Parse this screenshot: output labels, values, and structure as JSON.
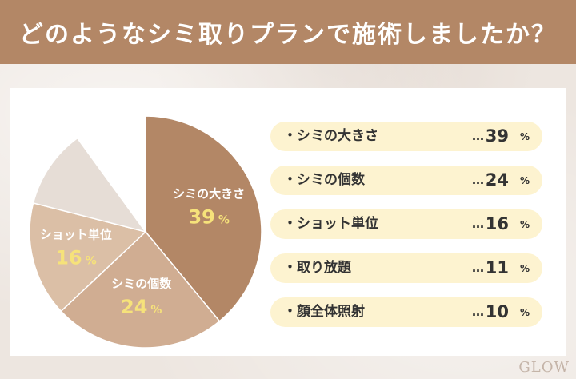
{
  "header": {
    "title": "どのようなシミ取りプランで施術しましたか？"
  },
  "chart_data": {
    "type": "pie",
    "unit": "%",
    "categories": [
      "シミの大きさ",
      "シミの個数",
      "ショット単位",
      "取り放題",
      "顔全体照射"
    ],
    "values": [
      39,
      24,
      16,
      11,
      10
    ],
    "colors": [
      "#b38766",
      "#d0ad92",
      "#dbbfa6",
      "#e6ddd6",
      "#ffffff"
    ],
    "label_color": "#ffffff",
    "value_color": "#f6e27a",
    "labeled_slices": [
      0,
      1,
      2
    ]
  },
  "legend": {
    "items": [
      {
        "label": "・シミの大きさ",
        "dots": "…",
        "value": "39",
        "unit": "%"
      },
      {
        "label": "・シミの個数",
        "dots": "…",
        "value": "24",
        "unit": "%"
      },
      {
        "label": "・ショット単位",
        "dots": "…",
        "value": "16",
        "unit": "%"
      },
      {
        "label": "・取り放題",
        "dots": "…",
        "value": "11",
        "unit": "%"
      },
      {
        "label": "・顔全体照射",
        "dots": "…",
        "value": "10",
        "unit": "%"
      }
    ]
  },
  "logo": {
    "text": "GLOW"
  }
}
